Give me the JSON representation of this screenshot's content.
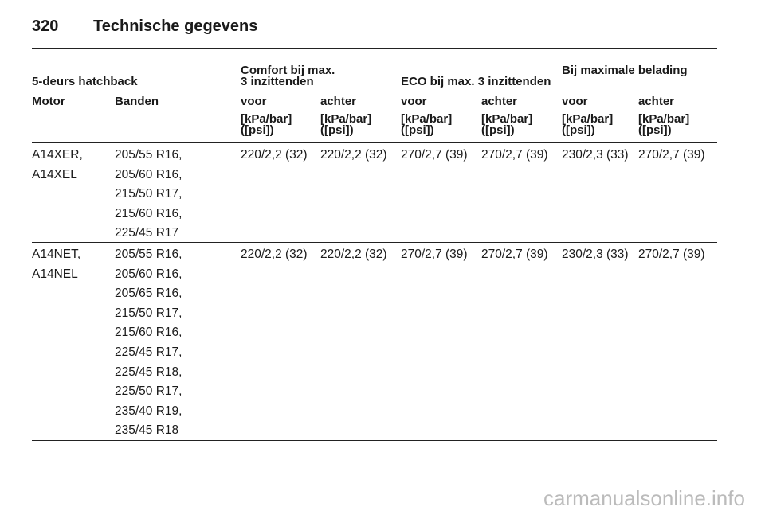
{
  "header": {
    "page_number": "320",
    "title": "Technische gegevens"
  },
  "table": {
    "group_headers": [
      [
        "5-deurs hatchback"
      ],
      [
        "Comfort bij max.",
        "3 inzittenden"
      ],
      [
        "ECO bij max. 3 inzittenden"
      ],
      [
        "Bij maximale belading"
      ]
    ],
    "columns": [
      "Motor",
      "Banden",
      "voor",
      "achter",
      "voor",
      "achter",
      "voor",
      "achter"
    ],
    "units": [
      [
        "[kPa/bar]",
        "([psi])"
      ],
      [
        "[kPa/bar]",
        "([psi])"
      ],
      [
        "[kPa/bar]",
        "([psi])"
      ],
      [
        "[kPa/bar]",
        "([psi])"
      ],
      [
        "[kPa/bar]",
        "([psi])"
      ],
      [
        "[kPa/bar]",
        "([psi])"
      ]
    ],
    "rows": [
      {
        "motor": [
          "A14XER,",
          "A14XEL"
        ],
        "tires": [
          "205/55 R16,",
          "205/60 R16,",
          "215/50 R17,",
          "215/60 R16,",
          "225/45 R17"
        ],
        "pressures": [
          "220/2,2 (32)",
          "220/2,2 (32)",
          "270/2,7 (39)",
          "270/2,7 (39)",
          "230/2,3 (33)",
          "270/2,7 (39)"
        ]
      },
      {
        "motor": [
          "A14NET,",
          "A14NEL"
        ],
        "tires": [
          "205/55 R16,",
          "205/60 R16,",
          "205/65 R16,",
          "215/50 R17,",
          "215/60 R16,",
          "225/45 R17,",
          "225/45 R18,",
          "225/50 R17,",
          "235/40 R19,",
          "235/45 R18"
        ],
        "pressures": [
          "220/2,2 (32)",
          "220/2,2 (32)",
          "270/2,7 (39)",
          "270/2,7 (39)",
          "230/2,3 (33)",
          "270/2,7 (39)"
        ]
      }
    ]
  },
  "watermark": "carmanualsonline.info"
}
